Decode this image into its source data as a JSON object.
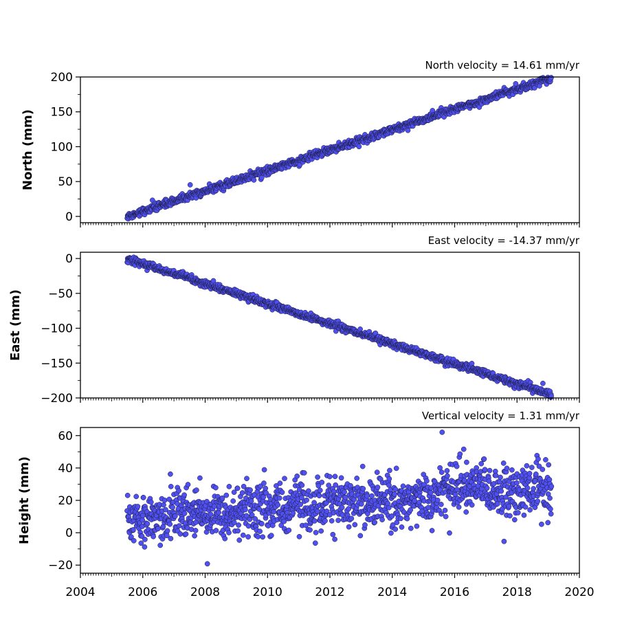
{
  "chart_data": [
    {
      "type": "scatter",
      "title": "North velocity = 14.61 mm/yr",
      "ylabel": "North (mm)",
      "xlim": [
        2004,
        2020
      ],
      "ylim": [
        -9,
        200
      ],
      "yticks": [
        0,
        50,
        100,
        150,
        200
      ],
      "ytick_labels": [
        "0",
        "50",
        "100",
        "150",
        "200"
      ],
      "trend": {
        "start_year": 2005.5,
        "end_year": 2019.1,
        "start_value": 0,
        "slope_per_year": 14.61,
        "scatter": 2.5
      },
      "series": [
        {
          "color": "#5050f0"
        }
      ]
    },
    {
      "type": "scatter",
      "title": "East velocity = -14.37 mm/yr",
      "ylabel": "East (mm)",
      "xlim": [
        2004,
        2020
      ],
      "ylim": [
        -200,
        9
      ],
      "yticks": [
        0,
        -50,
        -100,
        -150,
        -200
      ],
      "ytick_labels": [
        "0",
        "−50",
        "−100",
        "−150",
        "−200"
      ],
      "trend": {
        "start_year": 2005.5,
        "end_year": 2019.1,
        "start_value": 0,
        "slope_per_year": -14.37,
        "scatter": 2.5
      },
      "series": [
        {
          "color": "#5050f0"
        }
      ]
    },
    {
      "type": "scatter",
      "title": "Vertical velocity = 1.31 mm/yr",
      "ylabel": "Height (mm)",
      "xlabel": "",
      "xlim": [
        2004,
        2020
      ],
      "ylim": [
        -25,
        65
      ],
      "yticks": [
        -20,
        0,
        20,
        40,
        60
      ],
      "ytick_labels": [
        "−20",
        "0",
        "20",
        "40",
        "60"
      ],
      "xticks": [
        2004,
        2006,
        2008,
        2010,
        2012,
        2014,
        2016,
        2018,
        2020
      ],
      "xtick_labels": [
        "2004",
        "2006",
        "2008",
        "2010",
        "2012",
        "2014",
        "2016",
        "2018",
        "2020"
      ],
      "trend": {
        "start_year": 2005.5,
        "end_year": 2019.1,
        "start_value": 9,
        "slope_per_year": 1.31,
        "scatter": 8
      },
      "series": [
        {
          "color": "#5050f0"
        }
      ]
    }
  ]
}
